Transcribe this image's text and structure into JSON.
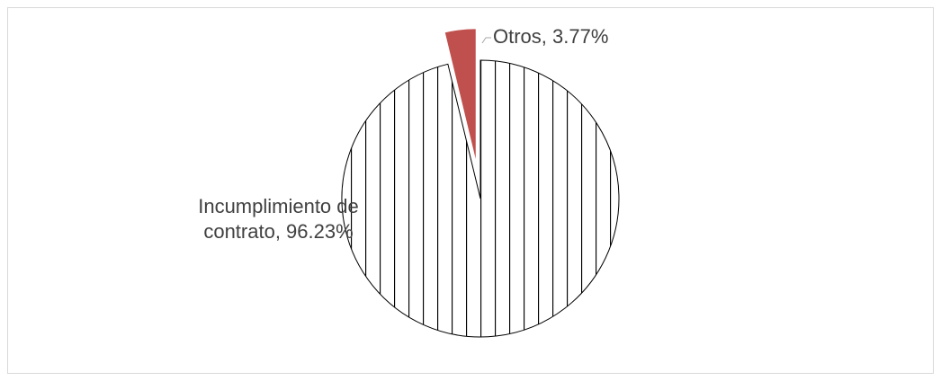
{
  "chart_data": {
    "type": "pie",
    "values": [
      96.23,
      3.77
    ],
    "value_labels": [
      "Incumplimiento de contrato, 96.23%",
      "Otros, 3.77%"
    ],
    "colors": [
      "#ffffff",
      "#c0504d"
    ],
    "hatch": [
      true,
      false
    ]
  }
}
